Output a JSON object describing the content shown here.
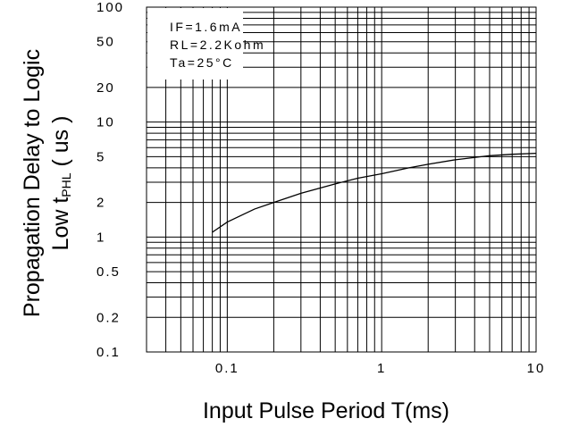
{
  "chart_data": {
    "type": "line",
    "xlabel": "Input Pulse Period T(ms)",
    "ylabel_line1": "Propagation Delay to Logic",
    "ylabel_line2_prefix": "Low t",
    "ylabel_line2_sub": "PHL",
    "ylabel_line2_suffix": " ( us )",
    "x_scale": "log",
    "y_scale": "log",
    "xlim": [
      0.03,
      10
    ],
    "ylim": [
      0.1,
      100
    ],
    "x_ticks": [
      {
        "value": 0.1,
        "label": "0.1"
      },
      {
        "value": 1,
        "label": "1"
      },
      {
        "value": 10,
        "label": "10"
      }
    ],
    "y_ticks": [
      {
        "value": 100,
        "label": "100"
      },
      {
        "value": 50,
        "label": "50"
      },
      {
        "value": 20,
        "label": "20"
      },
      {
        "value": 10,
        "label": "10"
      },
      {
        "value": 5,
        "label": "5"
      },
      {
        "value": 2,
        "label": "2"
      },
      {
        "value": 1,
        "label": "1"
      },
      {
        "value": 0.5,
        "label": "0.5"
      },
      {
        "value": 0.2,
        "label": "0.2"
      },
      {
        "value": 0.1,
        "label": "0.1"
      }
    ],
    "grid": true,
    "conditions": [
      "IF=1.6mA",
      "RL=2.2Kohm",
      "Ta=25°C"
    ],
    "series": [
      {
        "color": "#000000",
        "x": [
          0.08,
          0.1,
          0.15,
          0.2,
          0.3,
          0.5,
          0.7,
          1.0,
          1.5,
          2.0,
          3.0,
          5.0,
          7.0,
          10.0
        ],
        "y": [
          1.1,
          1.35,
          1.75,
          2.0,
          2.4,
          2.9,
          3.25,
          3.55,
          4.0,
          4.3,
          4.7,
          5.1,
          5.25,
          5.35
        ]
      }
    ]
  }
}
